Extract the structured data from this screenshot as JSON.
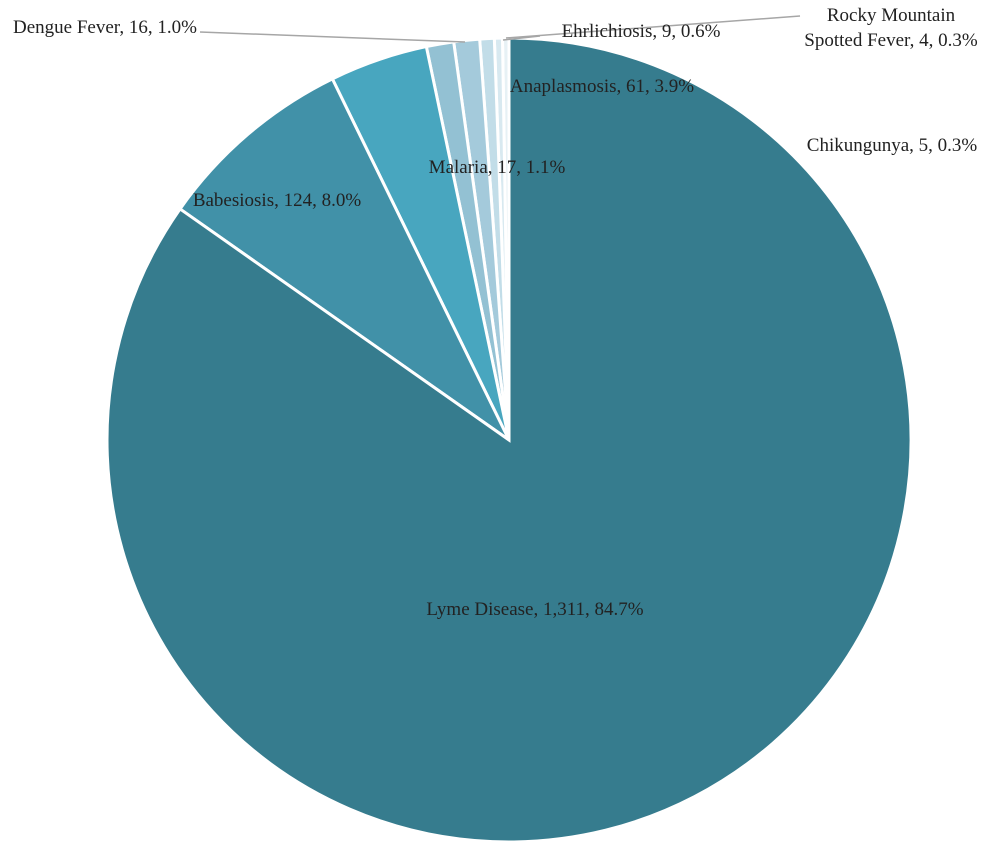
{
  "chart_data": {
    "type": "pie",
    "categories": [
      "Lyme Disease",
      "Babesiosis",
      "Anaplasmosis",
      "Malaria",
      "Dengue Fever",
      "Ehrlichiosis",
      "Chikungunya",
      "Rocky Mountain Spotted Fever"
    ],
    "values": [
      1311,
      124,
      61,
      17,
      16,
      9,
      5,
      4
    ],
    "value_labels": [
      "1,311",
      "124",
      "61",
      "17",
      "16",
      "9",
      "5",
      "4"
    ],
    "percent_labels": [
      "84.7%",
      "8.0%",
      "3.9%",
      "1.1%",
      "1.0%",
      "0.6%",
      "0.3%",
      "0.3%"
    ],
    "colors": [
      "#367c8e",
      "#4191a8",
      "#48a6bf",
      "#93c1d3",
      "#a4cadb",
      "#c2dde8",
      "#d8e9f0",
      "#e7f1f5"
    ]
  }
}
